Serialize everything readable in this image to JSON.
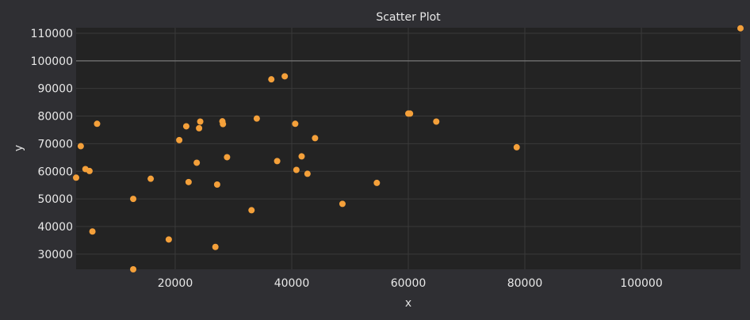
{
  "chart_data": {
    "type": "scatter",
    "title": "Scatter Plot",
    "xlabel": "x",
    "ylabel": "y",
    "xlim": [
      3000,
      117000
    ],
    "ylim": [
      24500,
      112000
    ],
    "xticks": [
      20000,
      40000,
      60000,
      80000,
      100000
    ],
    "yticks": [
      30000,
      40000,
      50000,
      60000,
      70000,
      80000,
      90000,
      100000,
      110000
    ],
    "grid": true,
    "reference_line": {
      "y": 100000
    },
    "colors": {
      "point": "#f4a03a",
      "plot_bg": "#232323",
      "page_bg": "#2f2f33",
      "grid": "#3a3a3a",
      "ref_line": "#8a8a8a"
    },
    "series": [
      {
        "points": [
          {
            "x": 3000,
            "y": 57700
          },
          {
            "x": 3800,
            "y": 69100
          },
          {
            "x": 4600,
            "y": 60800
          },
          {
            "x": 5300,
            "y": 60100
          },
          {
            "x": 5800,
            "y": 38200
          },
          {
            "x": 6600,
            "y": 77200
          },
          {
            "x": 12800,
            "y": 50000
          },
          {
            "x": 12800,
            "y": 24500
          },
          {
            "x": 15800,
            "y": 57300
          },
          {
            "x": 18900,
            "y": 35300
          },
          {
            "x": 20700,
            "y": 71300
          },
          {
            "x": 21900,
            "y": 76300
          },
          {
            "x": 22300,
            "y": 56100
          },
          {
            "x": 23700,
            "y": 63100
          },
          {
            "x": 24100,
            "y": 75600
          },
          {
            "x": 24300,
            "y": 78000
          },
          {
            "x": 26900,
            "y": 32600
          },
          {
            "x": 27200,
            "y": 55200
          },
          {
            "x": 28100,
            "y": 78100
          },
          {
            "x": 28200,
            "y": 77100
          },
          {
            "x": 28900,
            "y": 65100
          },
          {
            "x": 33100,
            "y": 45900
          },
          {
            "x": 34000,
            "y": 79100
          },
          {
            "x": 36500,
            "y": 93300
          },
          {
            "x": 37500,
            "y": 63700
          },
          {
            "x": 38800,
            "y": 94400
          },
          {
            "x": 40600,
            "y": 77200
          },
          {
            "x": 40800,
            "y": 60500
          },
          {
            "x": 41700,
            "y": 65400
          },
          {
            "x": 42700,
            "y": 59100
          },
          {
            "x": 44000,
            "y": 72000
          },
          {
            "x": 48700,
            "y": 48200
          },
          {
            "x": 54600,
            "y": 55800
          },
          {
            "x": 60000,
            "y": 80900
          },
          {
            "x": 60300,
            "y": 80900
          },
          {
            "x": 64800,
            "y": 78000
          },
          {
            "x": 78600,
            "y": 68700
          },
          {
            "x": 117000,
            "y": 111800
          }
        ]
      }
    ]
  }
}
